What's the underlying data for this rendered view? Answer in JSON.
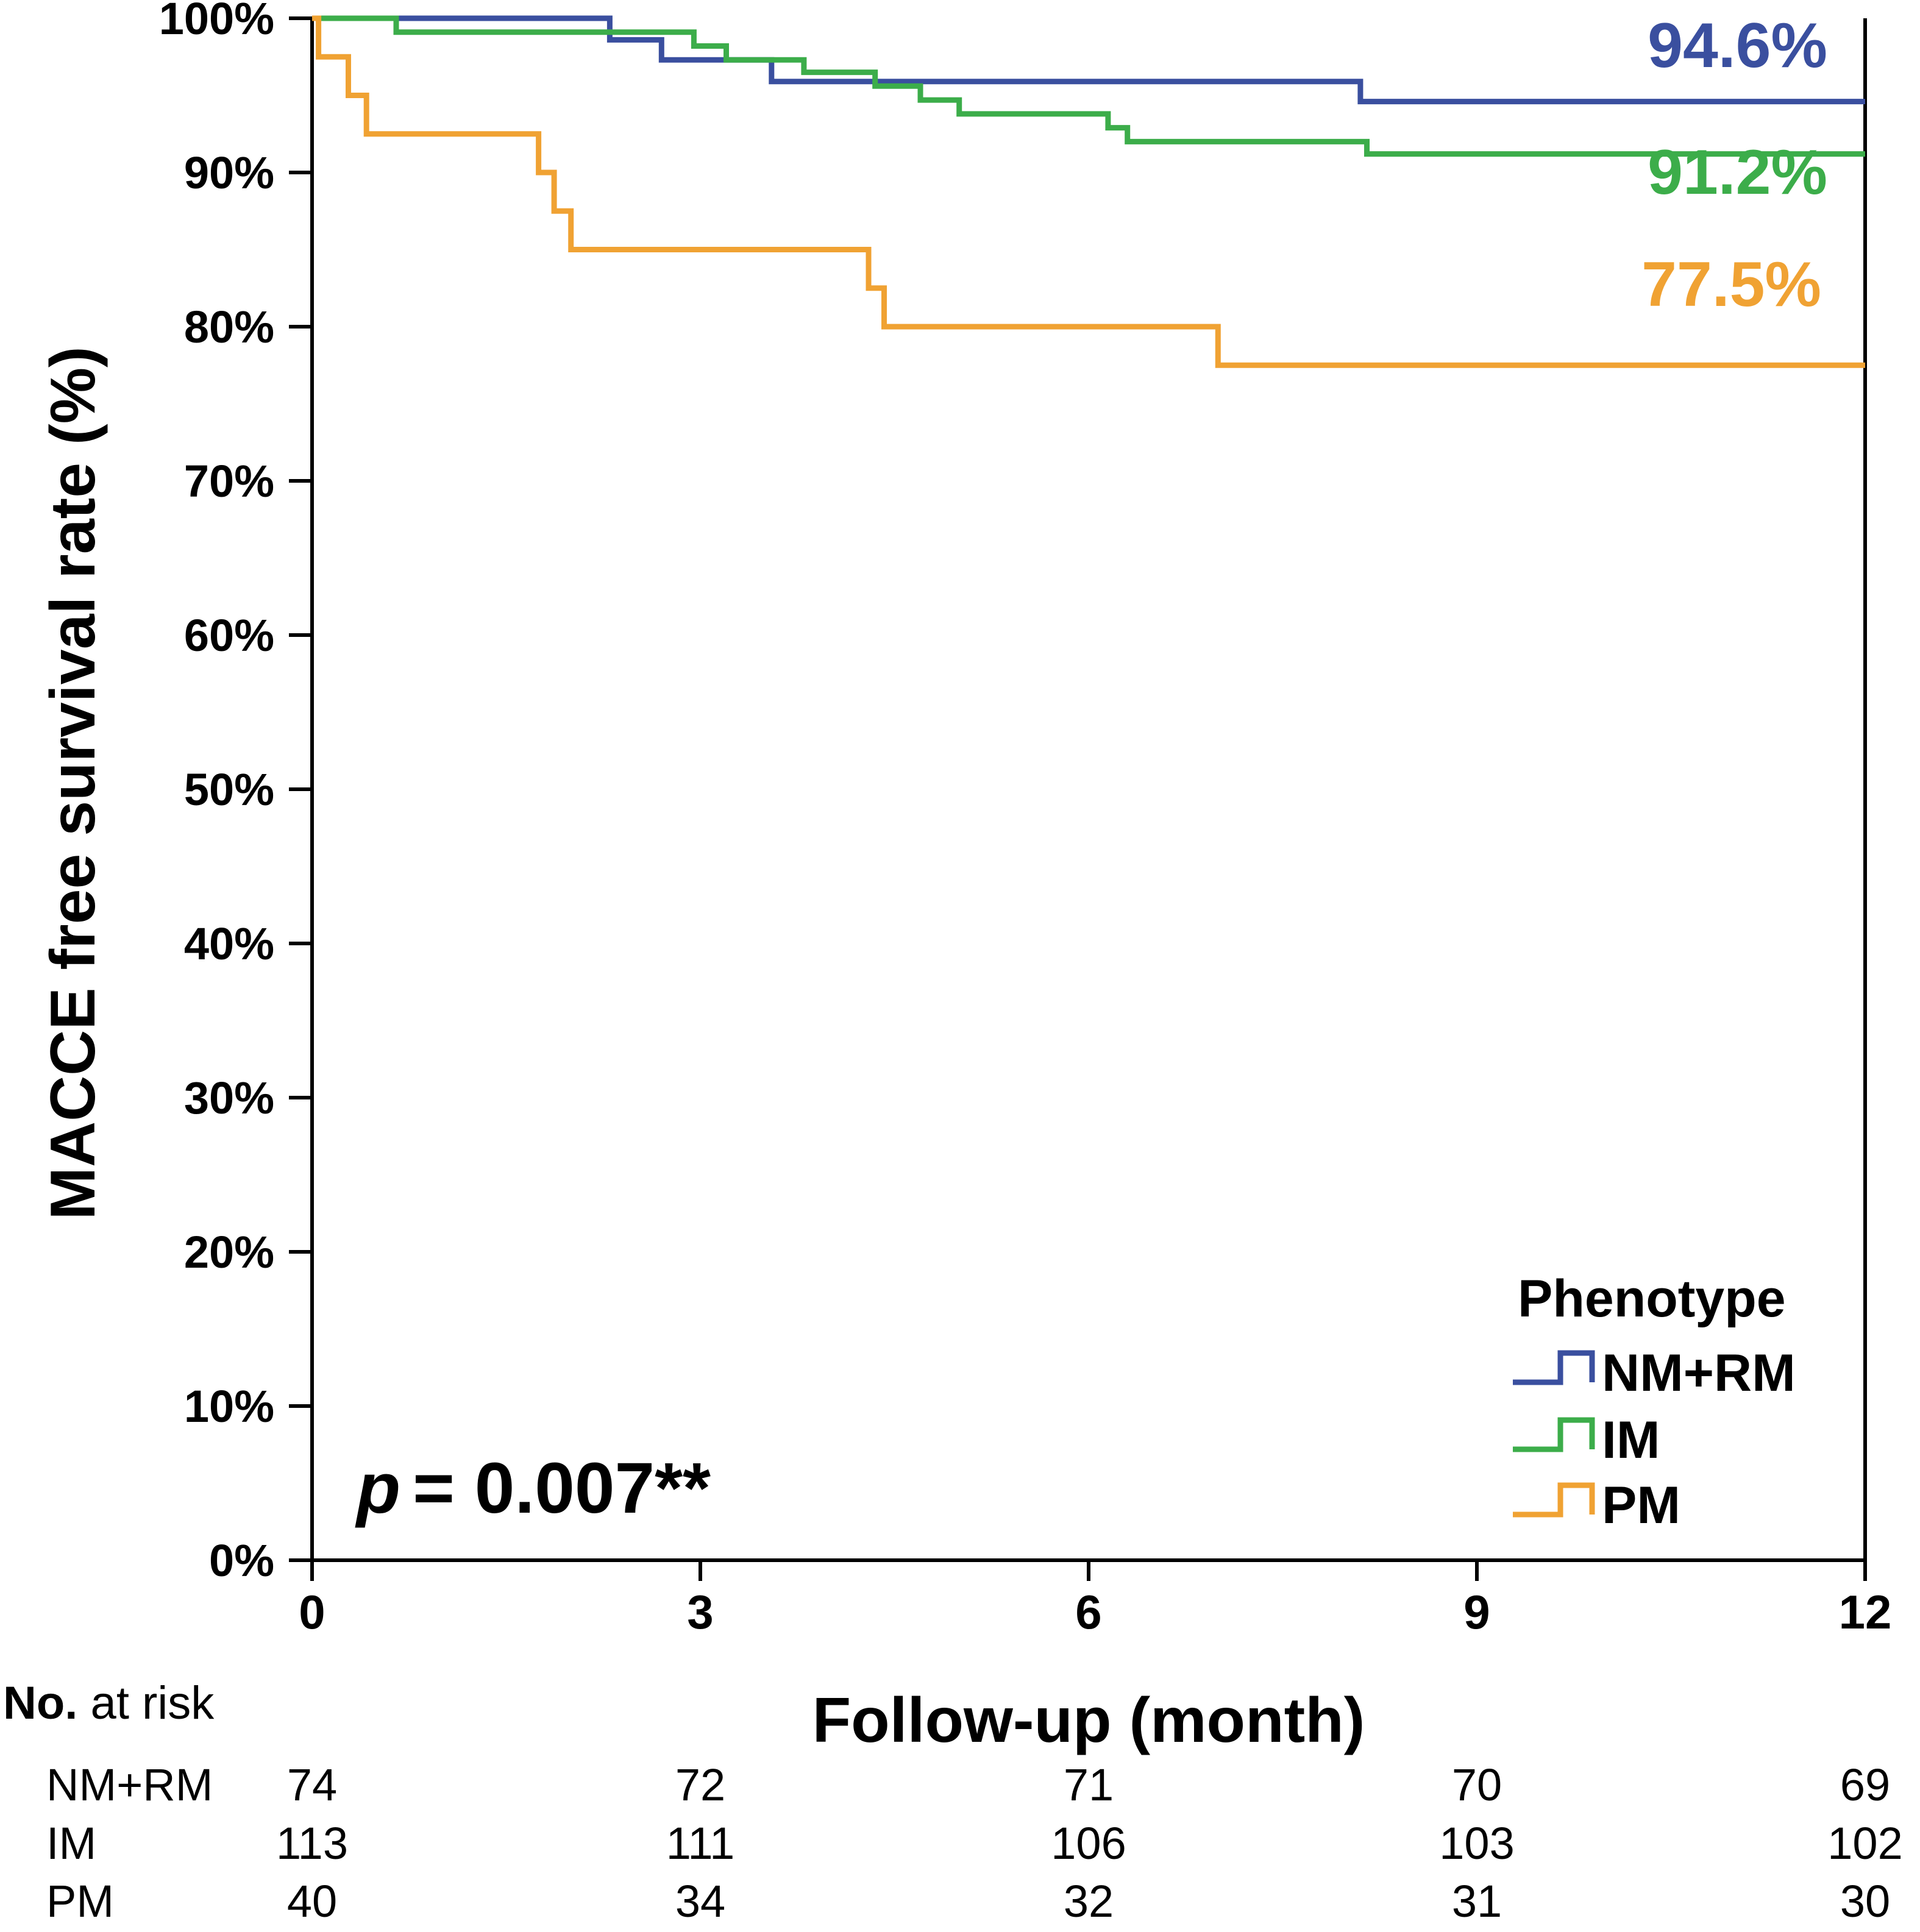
{
  "chart_data": {
    "type": "line",
    "subtype": "kaplan-meier-step",
    "xlabel": "Follow-up (month)",
    "ylabel": "MACCE free survival rate (%)",
    "xlim": [
      0,
      12
    ],
    "ylim": [
      0,
      100
    ],
    "x_ticks": [
      0,
      3,
      6,
      9,
      12
    ],
    "x_tick_labels": [
      "0",
      "3",
      "6",
      "9",
      "12"
    ],
    "y_ticks": [
      0,
      10,
      20,
      30,
      40,
      50,
      60,
      70,
      80,
      90,
      100
    ],
    "y_tick_labels": [
      "0%",
      "10%",
      "20%",
      "30%",
      "40%",
      "50%",
      "60%",
      "70%",
      "80%",
      "90%",
      "100%"
    ],
    "grid": false,
    "legend": {
      "title": "Phenotype",
      "position": "bottom-right"
    },
    "annotation": {
      "p_symbol": "p",
      "p_text": "= 0.007**"
    },
    "series": [
      {
        "name": "NM+RM",
        "color": "#3a4f9f",
        "end_label": "94.6%",
        "x": [
          0,
          2.3,
          2.3,
          2.7,
          2.7,
          3.55,
          3.55,
          8.1,
          8.1,
          12
        ],
        "y": [
          100,
          100,
          98.6,
          98.6,
          97.3,
          97.3,
          95.9,
          95.9,
          94.6,
          94.6
        ]
      },
      {
        "name": "IM",
        "color": "#3cad4a",
        "end_label": "91.2%",
        "x": [
          0,
          0.65,
          0.65,
          2.95,
          2.95,
          3.2,
          3.2,
          3.8,
          3.8,
          4.35,
          4.35,
          4.7,
          4.7,
          5.0,
          5.0,
          6.15,
          6.15,
          6.3,
          6.3,
          8.15,
          8.15,
          12
        ],
        "y": [
          100,
          100,
          99.1,
          99.1,
          98.2,
          98.2,
          97.3,
          97.3,
          96.5,
          96.5,
          95.6,
          95.6,
          94.7,
          94.7,
          93.8,
          93.8,
          92.9,
          92.9,
          92.0,
          92.0,
          91.2,
          91.2
        ]
      },
      {
        "name": "PM",
        "color": "#f0a233",
        "end_label": "77.5%",
        "x": [
          0,
          0.05,
          0.05,
          0.28,
          0.28,
          0.42,
          0.42,
          1.75,
          1.75,
          1.87,
          1.87,
          2.0,
          2.0,
          4.3,
          4.3,
          4.42,
          4.42,
          7.0,
          7.0,
          12
        ],
        "y": [
          100,
          100,
          97.5,
          97.5,
          95.0,
          95.0,
          92.5,
          92.5,
          90.0,
          90.0,
          87.5,
          87.5,
          85.0,
          85.0,
          82.5,
          82.5,
          80.0,
          80.0,
          77.5,
          77.5
        ]
      }
    ],
    "risk_table": {
      "title_bold": "No.",
      "title_rest": " at risk",
      "rows": [
        {
          "label": "NM+RM",
          "values": [
            "74",
            "72",
            "71",
            "70",
            "69"
          ]
        },
        {
          "label": "IM",
          "values": [
            "113",
            "111",
            "106",
            "103",
            "102"
          ]
        },
        {
          "label": "PM",
          "values": [
            "40",
            "34",
            "32",
            "31",
            "30"
          ]
        }
      ]
    }
  }
}
